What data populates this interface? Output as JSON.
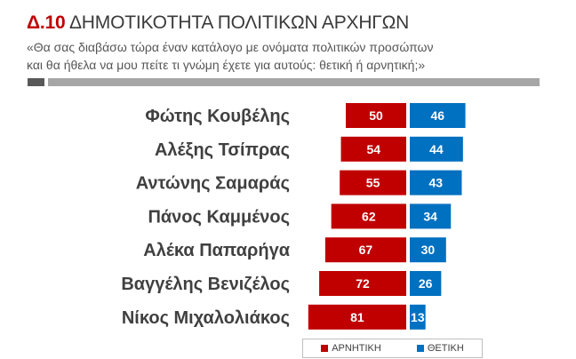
{
  "header": {
    "code": "Δ.10",
    "title": "ΔΗΜΟΤΙΚΟΤΗΤΑ ΠΟΛΙΤΙΚΩΝ ΑΡΧΗΓΩΝ",
    "subtitle_line1": "«Θα σας διαβάσω τώρα έναν κατάλογο με ονόματα πολιτικών προσώπων",
    "subtitle_line2": "και θα ήθελα να μου πείτε τι γνώμη έχετε για αυτούς: θετική ή αρνητική;»"
  },
  "chart_data": {
    "type": "bar",
    "orientation": "horizontal-diverging",
    "categories": [
      "Φώτης Κουβέλης",
      "Αλέξης Τσίπρας",
      "Αντώνης Σαμαράς",
      "Πάνος Καμμένος",
      "Αλέκα Παπαρήγα",
      "Βαγγέλης Βενιζέλος",
      "Νίκος Μιχαλολιάκος"
    ],
    "series": [
      {
        "name": "ΑΡΝΗΤΙΚΗ",
        "color": "#c00000",
        "values": [
          50,
          54,
          55,
          62,
          67,
          72,
          81
        ]
      },
      {
        "name": "ΘΕΤΙΚΗ",
        "color": "#0070c0",
        "values": [
          46,
          44,
          43,
          34,
          30,
          26,
          13
        ]
      }
    ],
    "legend_position": "bottom"
  }
}
